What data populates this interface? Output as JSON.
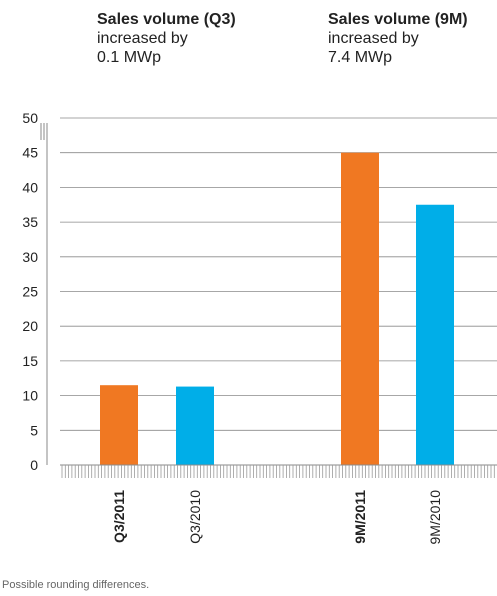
{
  "headlines": {
    "left": {
      "title": "Sales volume (Q3)",
      "line1": "increased by",
      "line2": "0.1 MWp"
    },
    "right": {
      "title": "Sales volume (9M)",
      "line1": "increased by",
      "line2": "7.4 MWp"
    }
  },
  "chart_data": {
    "type": "bar",
    "ylim": [
      0,
      50
    ],
    "yticks": [
      0,
      5,
      10,
      15,
      20,
      25,
      30,
      35,
      40,
      45,
      50
    ],
    "grid": true,
    "categories": [
      "Q3/2011",
      "Q3/2010",
      "9M/2011",
      "9M/2010"
    ],
    "category_bold": [
      true,
      false,
      true,
      false
    ],
    "values": [
      11.5,
      11.3,
      45.0,
      37.5
    ],
    "colors": [
      "#f07822",
      "#00aee8",
      "#f07822",
      "#00aee8"
    ]
  },
  "footnote": "Possible rounding differences."
}
